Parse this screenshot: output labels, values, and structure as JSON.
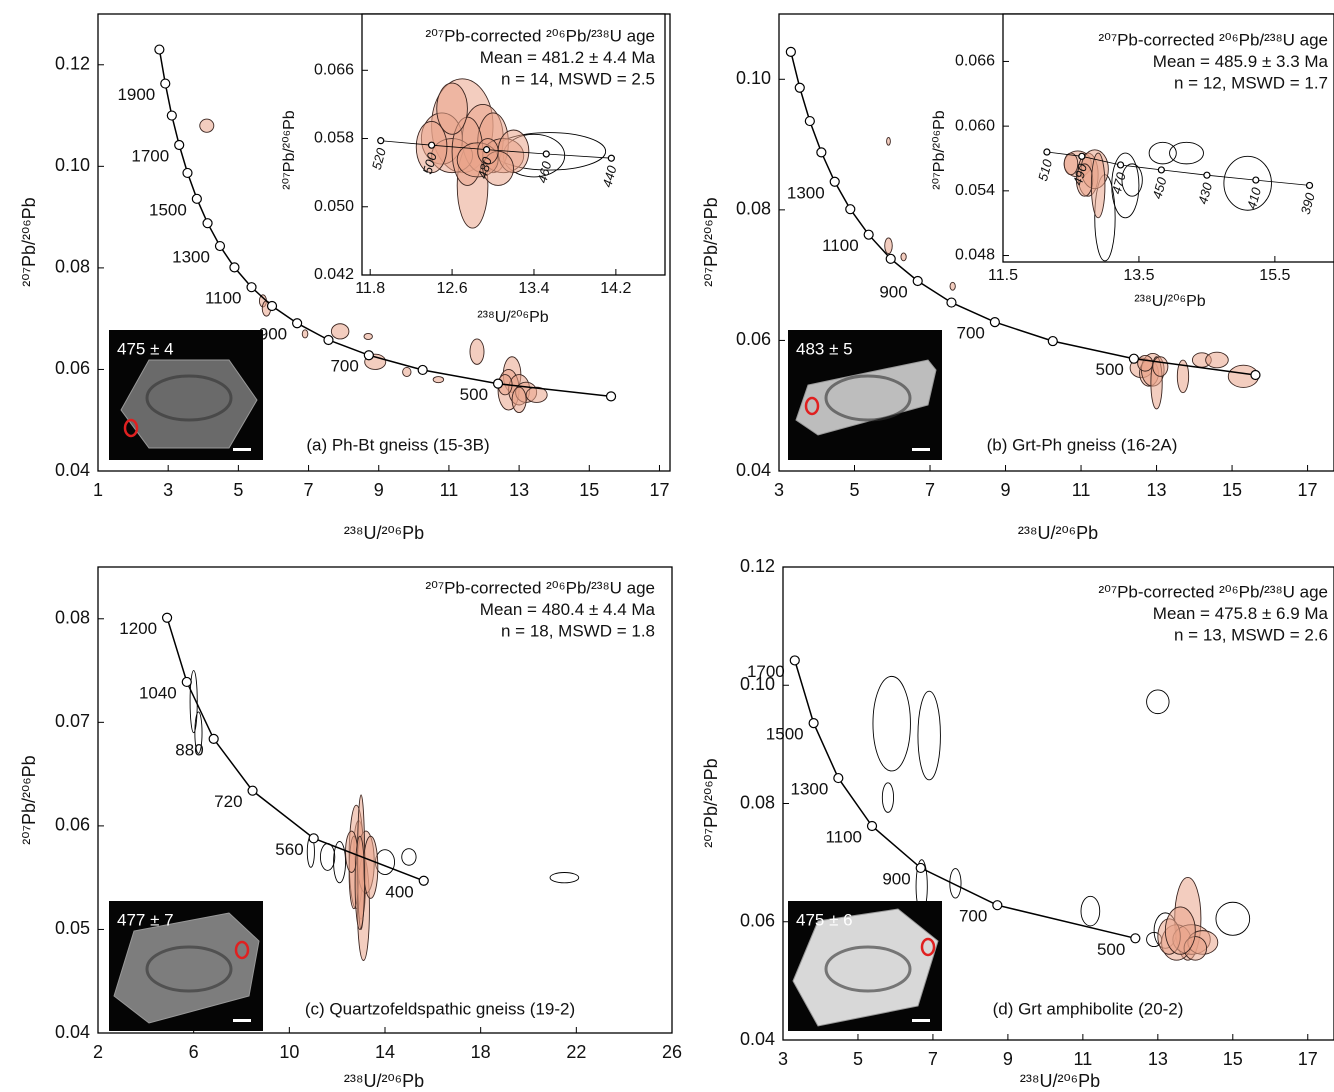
{
  "chart_data": [
    {
      "type": "concordia",
      "caption": "(a) Ph-Bt gneiss (15-3B)",
      "xlabel": "²³⁸U/²⁰⁶Pb",
      "ylabel": "²⁰⁷Pb/²⁰⁶Pb",
      "xlim": [
        1,
        17.3
      ],
      "ylim": [
        0.04,
        0.13
      ],
      "xticks": [
        1,
        3,
        5,
        7,
        9,
        11,
        13,
        15,
        17
      ],
      "yticks": [
        0.04,
        0.06,
        0.08,
        {
          "value": 0.1,
          "label": "0.10"
        },
        0.12
      ],
      "color": "#e9a48a",
      "concordia": {
        "x": [
          2.749,
          2.917,
          3.104,
          3.314,
          3.55,
          3.817,
          4.122,
          4.476,
          4.888,
          5.375,
          5.959,
          6.674,
          7.568,
          8.718,
          10.252,
          12.4,
          15.62
        ],
        "y": [
          0.123,
          0.1163,
          0.11,
          0.1042,
          0.0987,
          0.0936,
          0.0888,
          0.0843,
          0.0801,
          0.0762,
          0.0725,
          0.0691,
          0.0658,
          0.0628,
          0.0599,
          0.0572,
          0.0547
        ],
        "ages": [
          null,
          1900,
          null,
          1700,
          null,
          1500,
          null,
          1300,
          null,
          1100,
          null,
          900,
          null,
          700,
          null,
          500,
          null
        ]
      },
      "analyses": {
        "x": [
          4.1,
          5.7,
          5.8,
          6.9,
          7.9,
          8.7,
          8.9,
          9.8,
          10.7,
          11.8,
          12.8,
          12.7,
          13.0,
          13.2,
          13.5,
          12.6,
          13.0
        ],
        "y": [
          0.108,
          0.0735,
          0.072,
          0.067,
          0.0675,
          0.0665,
          0.0615,
          0.0595,
          0.058,
          0.0635,
          0.059,
          0.056,
          0.056,
          0.0555,
          0.055,
          0.057,
          0.054
        ],
        "x_err": [
          0.2,
          0.1,
          0.12,
          0.08,
          0.25,
          0.12,
          0.3,
          0.12,
          0.15,
          0.2,
          0.25,
          0.3,
          0.3,
          0.3,
          0.3,
          0.2,
          0.2
        ],
        "y_err": [
          0.0013,
          0.0012,
          0.0015,
          0.0008,
          0.0015,
          0.0006,
          0.0015,
          0.0009,
          0.0006,
          0.0025,
          0.0035,
          0.004,
          0.003,
          0.002,
          0.0015,
          0.002,
          0.0025
        ],
        "included": [
          true,
          true,
          true,
          true,
          true,
          true,
          true,
          true,
          true,
          true,
          true,
          true,
          true,
          true,
          true,
          true,
          true
        ]
      },
      "age_text": [
        "²⁰⁷Pb-corrected ²⁰⁶Pb/²³⁸U age",
        "Mean = 481.2 ± 4.4 Ma",
        "n = 14, MSWD = 2.5"
      ],
      "grain_age": "475 ± 4",
      "inset": {
        "xlabel": "²³⁸U/²⁰⁶Pb",
        "ylabel": "²⁰⁷Pb/²⁰⁶Pb",
        "xlim": [
          11.72,
          14.68
        ],
        "ylim": [
          0.042,
          0.0726
        ],
        "xticks": [
          11.8,
          12.6,
          13.4,
          14.2
        ],
        "yticks": [
          0.042,
          {
            "value": 0.05,
            "label": "0.050"
          },
          0.058,
          0.066
        ],
        "concordia": {
          "x": [
            11.903,
            12.4,
            12.937,
            13.52,
            14.156
          ],
          "y": [
            0.05775,
            0.05722,
            0.0567,
            0.05619,
            0.05569
          ],
          "ages": [
            520,
            500,
            480,
            460,
            440
          ]
        },
        "analyses": {
          "x": [
            12.7,
            12.8,
            12.5,
            12.9,
            12.6,
            13.0,
            13.1,
            12.75,
            12.4,
            13.2,
            12.85,
            13.05,
            12.6,
            12.95,
            13.55,
            13.4
          ],
          "y": [
            0.0595,
            0.0525,
            0.058,
            0.058,
            0.056,
            0.0575,
            0.056,
            0.0565,
            0.057,
            0.0565,
            0.0555,
            0.0545,
            0.0615,
            0.0565,
            0.0565,
            0.056
          ],
          "x_err": [
            0.3,
            0.15,
            0.2,
            0.2,
            0.2,
            0.15,
            0.2,
            0.15,
            0.15,
            0.15,
            0.2,
            0.15,
            0.15,
            0.1,
            0.55,
            0.3
          ],
          "y_err": [
            0.0055,
            0.005,
            0.003,
            0.004,
            0.002,
            0.0035,
            0.002,
            0.004,
            0.003,
            0.0025,
            0.002,
            0.002,
            0.003,
            0.0015,
            0.0022,
            0.0025
          ],
          "included": [
            true,
            true,
            true,
            true,
            true,
            true,
            true,
            true,
            true,
            true,
            true,
            true,
            true,
            true,
            false,
            false
          ]
        }
      }
    },
    {
      "type": "concordia",
      "caption": "(b) Grt-Ph gneiss (16-2A)",
      "xlabel": "²³⁸U/²⁰⁶Pb",
      "ylabel": "²⁰⁷Pb/²⁰⁶Pb",
      "xlim": [
        3,
        17.7
      ],
      "ylim": [
        0.04,
        0.11
      ],
      "xticks": [
        3,
        5,
        7,
        9,
        11,
        13,
        15,
        17
      ],
      "yticks": [
        0.04,
        0.06,
        0.08,
        {
          "value": 0.1,
          "label": "0.10"
        }
      ],
      "color": "#e9a48a",
      "concordia": {
        "x": [
          3.314,
          3.55,
          3.817,
          4.122,
          4.476,
          4.888,
          5.375,
          5.959,
          6.674,
          7.568,
          8.718,
          10.252,
          12.4,
          15.62
        ],
        "y": [
          0.1042,
          0.0987,
          0.0936,
          0.0888,
          0.0843,
          0.0801,
          0.0762,
          0.0725,
          0.0691,
          0.0658,
          0.0628,
          0.0599,
          0.0572,
          0.0547
        ],
        "ages": [
          null,
          null,
          null,
          null,
          1300,
          null,
          1100,
          null,
          900,
          null,
          700,
          null,
          500,
          null
        ]
      },
      "analyses": {
        "x": [
          5.9,
          5.9,
          6.3,
          7.6,
          12.6,
          12.8,
          12.9,
          13.0,
          13.1,
          13.7,
          14.2,
          14.6,
          15.3,
          12.7
        ],
        "y": [
          0.0905,
          0.0745,
          0.0728,
          0.0683,
          0.0558,
          0.055,
          0.0555,
          0.0535,
          0.056,
          0.0545,
          0.057,
          0.057,
          0.0545,
          0.0565
        ],
        "x_err": [
          0.05,
          0.1,
          0.07,
          0.07,
          0.3,
          0.25,
          0.3,
          0.15,
          0.2,
          0.15,
          0.25,
          0.3,
          0.4,
          0.2
        ],
        "y_err": [
          0.0006,
          0.0012,
          0.0006,
          0.0006,
          0.0015,
          0.002,
          0.0025,
          0.004,
          0.0015,
          0.0025,
          0.0011,
          0.0012,
          0.0017,
          0.0012
        ],
        "included": [
          true,
          true,
          true,
          true,
          true,
          true,
          true,
          true,
          true,
          true,
          true,
          true,
          true,
          true
        ]
      },
      "age_text": [
        "²⁰⁷Pb-corrected ²⁰⁶Pb/²³⁸U age",
        "Mean = 485.9 ± 3.3 Ma",
        "n = 12, MSWD = 1.7"
      ],
      "grain_age": "483 ± 5",
      "inset": {
        "xlabel": "²³⁸U/²⁰⁶Pb",
        "ylabel": "²⁰⁷Pb/²⁰⁶Pb",
        "xlim": [
          11.5,
          16.37
        ],
        "ylim": [
          0.0474,
          0.0704
        ],
        "xticks": [
          11.5,
          13.5,
          15.5
        ],
        "yticks": [
          0.048,
          0.054,
          {
            "value": 0.06,
            "label": "0.060"
          },
          0.066
        ],
        "concordia": {
          "x": [
            12.146,
            12.66,
            13.23,
            13.83,
            14.5,
            15.22,
            16.01
          ],
          "y": [
            0.0576,
            0.0572,
            0.0564,
            0.05594,
            0.05545,
            0.055,
            0.0545
          ],
          "ages": [
            510,
            490,
            470,
            450,
            430,
            410,
            390
          ]
        },
        "analyses": {
          "x": [
            12.6,
            12.75,
            12.85,
            12.7,
            12.5,
            12.9,
            13.0,
            13.3,
            13.85,
            14.2,
            15.1,
            13.4
          ],
          "y": [
            0.0565,
            0.0555,
            0.056,
            0.055,
            0.0565,
            0.0545,
            0.0515,
            0.0545,
            0.0575,
            0.0575,
            0.0547,
            0.055
          ],
          "x_err": [
            0.2,
            0.15,
            0.2,
            0.12,
            0.1,
            0.1,
            0.15,
            0.2,
            0.2,
            0.25,
            0.35,
            0.15
          ],
          "y_err": [
            0.0012,
            0.002,
            0.0018,
            0.0015,
            0.001,
            0.003,
            0.004,
            0.003,
            0.001,
            0.001,
            0.0025,
            0.0015
          ],
          "included": [
            true,
            true,
            true,
            true,
            true,
            true,
            false,
            false,
            false,
            false,
            false,
            false
          ]
        }
      }
    },
    {
      "type": "concordia",
      "caption": "(c) Quartzofeldspathic gneiss (19-2)",
      "xlabel": "²³⁸U/²⁰⁶Pb",
      "ylabel": "²⁰⁷Pb/²⁰⁶Pb",
      "xlim": [
        2,
        26
      ],
      "ylim": [
        0.04,
        0.085
      ],
      "xticks": [
        2,
        6,
        10,
        14,
        18,
        22,
        26
      ],
      "yticks": [
        0.04,
        0.05,
        0.06,
        0.07,
        0.08
      ],
      "color": "#e9a48a",
      "concordia": {
        "x": [
          4.888,
          5.712,
          6.837,
          8.462,
          11.018,
          15.62
        ],
        "y": [
          0.0801,
          0.0739,
          0.0684,
          0.0634,
          0.0588,
          0.0547
        ],
        "ages": [
          1200,
          1040,
          880,
          720,
          560,
          400
        ]
      },
      "analyses": {
        "x": [
          6.0,
          6.2,
          10.9,
          11.6,
          12.1,
          15.0,
          21.5,
          14.0,
          12.9,
          13.0,
          12.8,
          13.1,
          12.7,
          13.2,
          12.6,
          13.0,
          13.4,
          12.95
        ],
        "y": [
          0.072,
          0.069,
          0.0575,
          0.057,
          0.0565,
          0.057,
          0.055,
          0.0565,
          0.058,
          0.055,
          0.057,
          0.052,
          0.0555,
          0.0565,
          0.0575,
          0.0565,
          0.056,
          0.0545
        ],
        "x_err": [
          0.15,
          0.15,
          0.15,
          0.3,
          0.25,
          0.3,
          0.6,
          0.4,
          0.2,
          0.2,
          0.3,
          0.25,
          0.2,
          0.35,
          0.25,
          0.15,
          0.3,
          0.2
        ],
        "y_err": [
          0.003,
          0.002,
          0.0015,
          0.0013,
          0.002,
          0.0008,
          0.0005,
          0.0012,
          0.0025,
          0.004,
          0.005,
          0.005,
          0.0035,
          0.003,
          0.002,
          0.0065,
          0.003,
          0.0045
        ],
        "included": [
          false,
          false,
          false,
          false,
          false,
          false,
          false,
          false,
          true,
          true,
          true,
          true,
          true,
          true,
          true,
          true,
          true,
          true
        ]
      },
      "age_text": [
        "²⁰⁷Pb-corrected ²⁰⁶Pb/²³⁸U age",
        "Mean = 480.4 ± 4.4 Ma",
        "n = 18, MSWD = 1.8"
      ],
      "grain_age": "477 ± 7"
    },
    {
      "type": "concordia",
      "caption": "(d) Grt amphibolite (20-2)",
      "xlabel": "²³⁸U/²⁰⁶Pb",
      "ylabel": "²⁰⁷Pb/²⁰⁶Pb",
      "xlim": [
        3,
        17.7
      ],
      "ylim": [
        0.04,
        0.12
      ],
      "xticks": [
        3,
        5,
        7,
        9,
        11,
        13,
        15,
        17
      ],
      "yticks": [
        0.04,
        0.06,
        0.08,
        {
          "value": 0.1,
          "label": "0.10"
        },
        0.12
      ],
      "color": "#e9a48a",
      "concordia": {
        "x": [
          3.314,
          3.817,
          4.476,
          5.375,
          6.674,
          8.718,
          12.4
        ],
        "y": [
          0.1042,
          0.0936,
          0.0843,
          0.0762,
          0.0691,
          0.0628,
          0.0572
        ],
        "ages": [
          1700,
          1500,
          1300,
          1100,
          900,
          700,
          500
        ]
      },
      "analyses": {
        "x": [
          5.9,
          6.9,
          5.8,
          6.7,
          7.6,
          11.2,
          13.0,
          15.0,
          12.9,
          13.2,
          13.8,
          13.5,
          13.9,
          14.2,
          13.3,
          14.0,
          13.6
        ],
        "y": [
          0.0935,
          0.0915,
          0.081,
          0.066,
          0.0665,
          0.0618,
          0.0972,
          0.0605,
          0.057,
          0.0585,
          0.0605,
          0.0565,
          0.057,
          0.0565,
          0.0575,
          0.0555,
          0.0585
        ],
        "x_err": [
          0.5,
          0.3,
          0.15,
          0.15,
          0.15,
          0.25,
          0.3,
          0.45,
          0.2,
          0.3,
          0.35,
          0.4,
          0.5,
          0.4,
          0.3,
          0.3,
          0.4
        ],
        "y_err": [
          0.008,
          0.0075,
          0.0025,
          0.0045,
          0.0025,
          0.0025,
          0.002,
          0.0028,
          0.0012,
          0.003,
          0.007,
          0.003,
          0.0025,
          0.002,
          0.003,
          0.002,
          0.004
        ],
        "included": [
          false,
          false,
          false,
          false,
          false,
          false,
          false,
          false,
          false,
          false,
          true,
          true,
          true,
          true,
          true,
          true,
          true
        ]
      },
      "age_text": [
        "²⁰⁷Pb-corrected ²⁰⁶Pb/²³⁸U age",
        "Mean = 475.8 ± 6.9 Ma",
        "n = 13, MSWD = 2.6"
      ],
      "grain_age": "475 ± 6"
    }
  ]
}
